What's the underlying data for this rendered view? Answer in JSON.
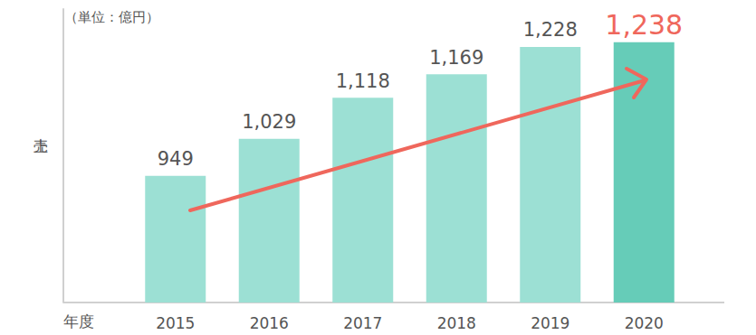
{
  "chart_data": {
    "type": "bar",
    "title": "（単位：億円）",
    "x_label": "年度",
    "y_label": "売上",
    "categories": [
      "2015",
      "2016",
      "2017",
      "2018",
      "2019",
      "2020"
    ],
    "values": [
      949,
      1029,
      1118,
      1169,
      1228,
      1238
    ],
    "value_labels": [
      "949",
      "1,029",
      "1,118",
      "1,169",
      "1,228",
      "1,238"
    ],
    "colors": [
      "#9ce0d4",
      "#9ce0d4",
      "#9ce0d4",
      "#9ce0d4",
      "#9ce0d4",
      "#66ccb8"
    ],
    "ylim": [
      675,
      1310
    ],
    "yticks": [],
    "grid": false,
    "data_labels": true,
    "tick_labels": "x"
  }
}
